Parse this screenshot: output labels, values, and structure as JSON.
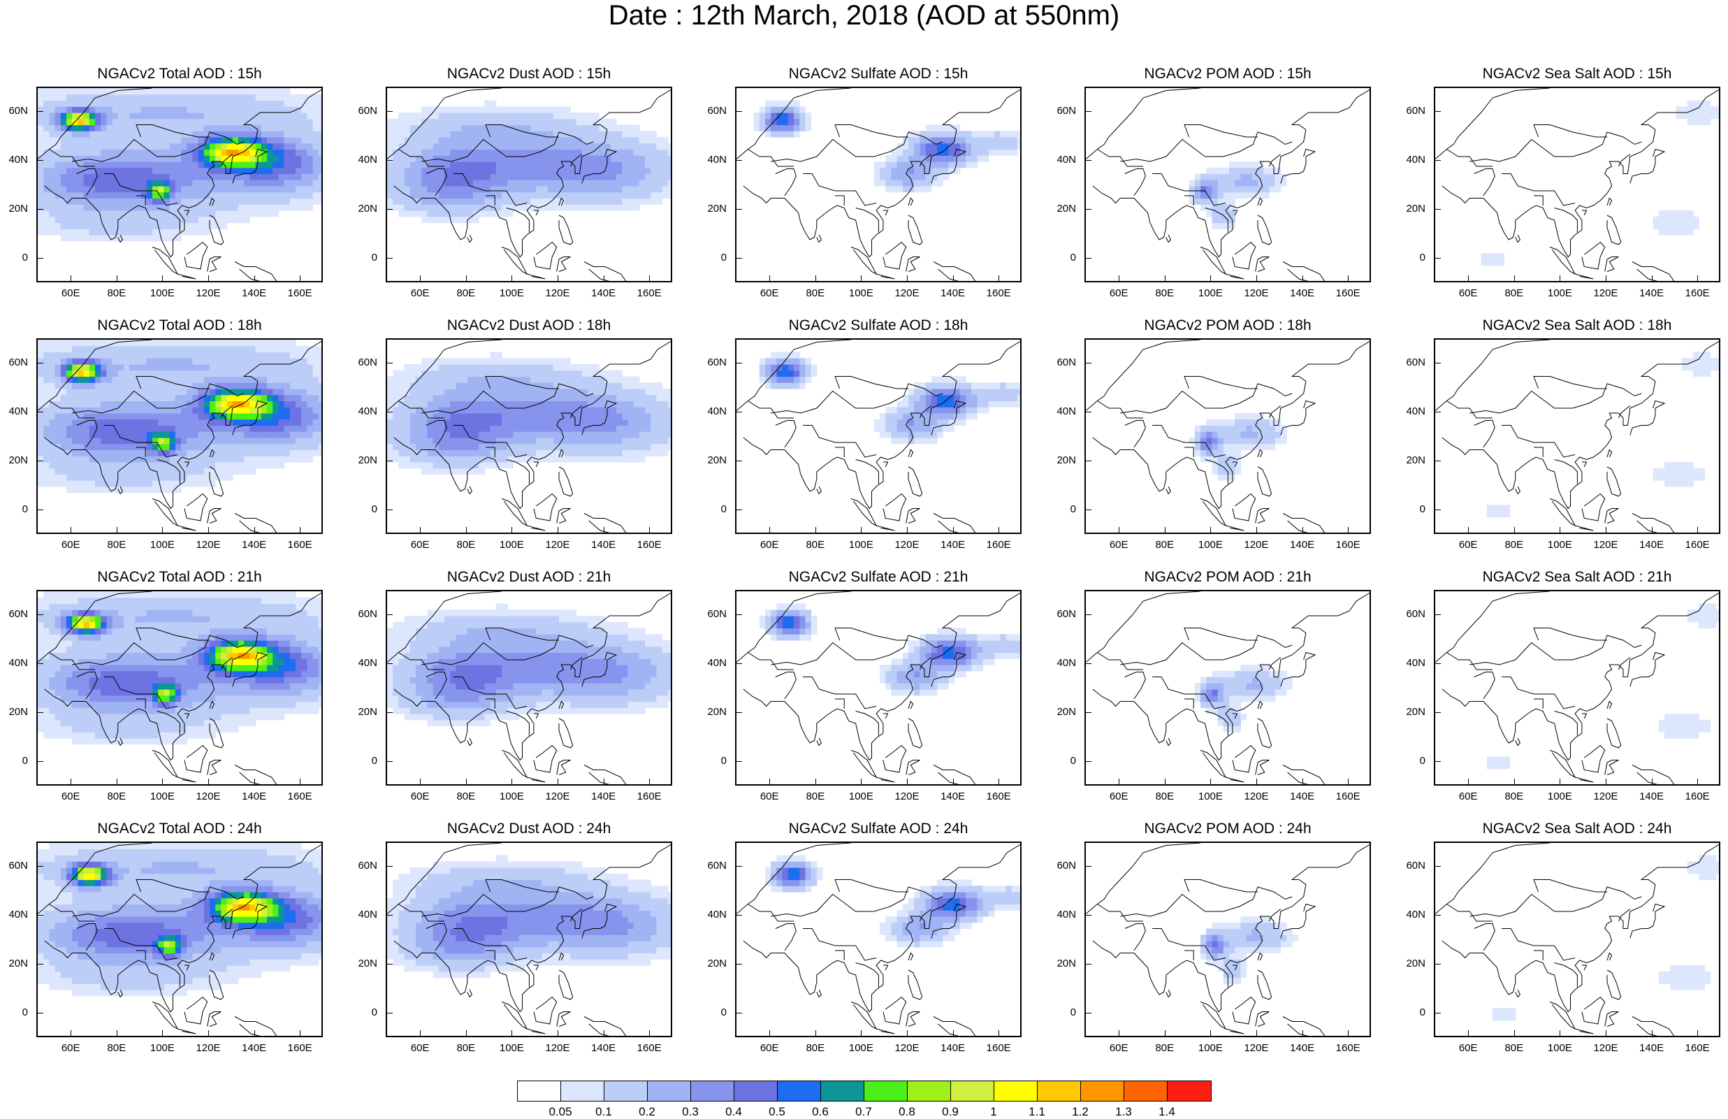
{
  "title": "Date : 12th March, 2018 (AOD at 550nm)",
  "rows": [
    "15h",
    "18h",
    "21h",
    "24h"
  ],
  "panels": [
    [
      "NGACv2 Total AOD : 15h",
      "NGACv2 Dust AOD : 15h",
      "NGACv2 Sulfate AOD : 15h",
      "NGACv2 POM AOD : 15h",
      "NGACv2 Sea Salt AOD : 15h"
    ],
    [
      "NGACv2 Total AOD : 18h",
      "NGACv2 Dust AOD : 18h",
      "NGACv2 Sulfate AOD : 18h",
      "NGACv2 POM AOD : 18h",
      "NGACv2 Sea Salt AOD : 18h"
    ],
    [
      "NGACv2 Total AOD : 21h",
      "NGACv2 Dust AOD : 21h",
      "NGACv2 Sulfate AOD : 21h",
      "NGACv2 POM AOD : 21h",
      "NGACv2 Sea Salt AOD : 21h"
    ],
    [
      "NGACv2 Total AOD : 24h",
      "NGACv2 Dust AOD : 24h",
      "NGACv2 Sulfate AOD : 24h",
      "NGACv2 POM AOD : 24h",
      "NGACv2 Sea Salt  AOD : 24h"
    ]
  ],
  "lat_labels": [
    "60N",
    "40N",
    "20N",
    "0"
  ],
  "lon_labels": [
    "60E",
    "80E",
    "100E",
    "120E",
    "140E",
    "160E"
  ],
  "map_extent": {
    "lon": [
      45,
      170
    ],
    "lat": [
      -10,
      70
    ]
  },
  "colorbar": {
    "labels": [
      "0.05",
      "0.1",
      "0.2",
      "0.3",
      "0.4",
      "0.5",
      "0.6",
      "0.7",
      "0.8",
      "0.9",
      "1",
      "1.1",
      "1.2",
      "1.3",
      "1.4"
    ],
    "colors": [
      "#ffffff",
      "#dce6fc",
      "#bccdf8",
      "#a0b4f4",
      "#8694ee",
      "#6e73e2",
      "#1e6cf0",
      "#0c9696",
      "#4cf018",
      "#a0f018",
      "#d0f040",
      "#ffff00",
      "#ffc800",
      "#ff9600",
      "#ff6400",
      "#ff1e14"
    ]
  }
}
